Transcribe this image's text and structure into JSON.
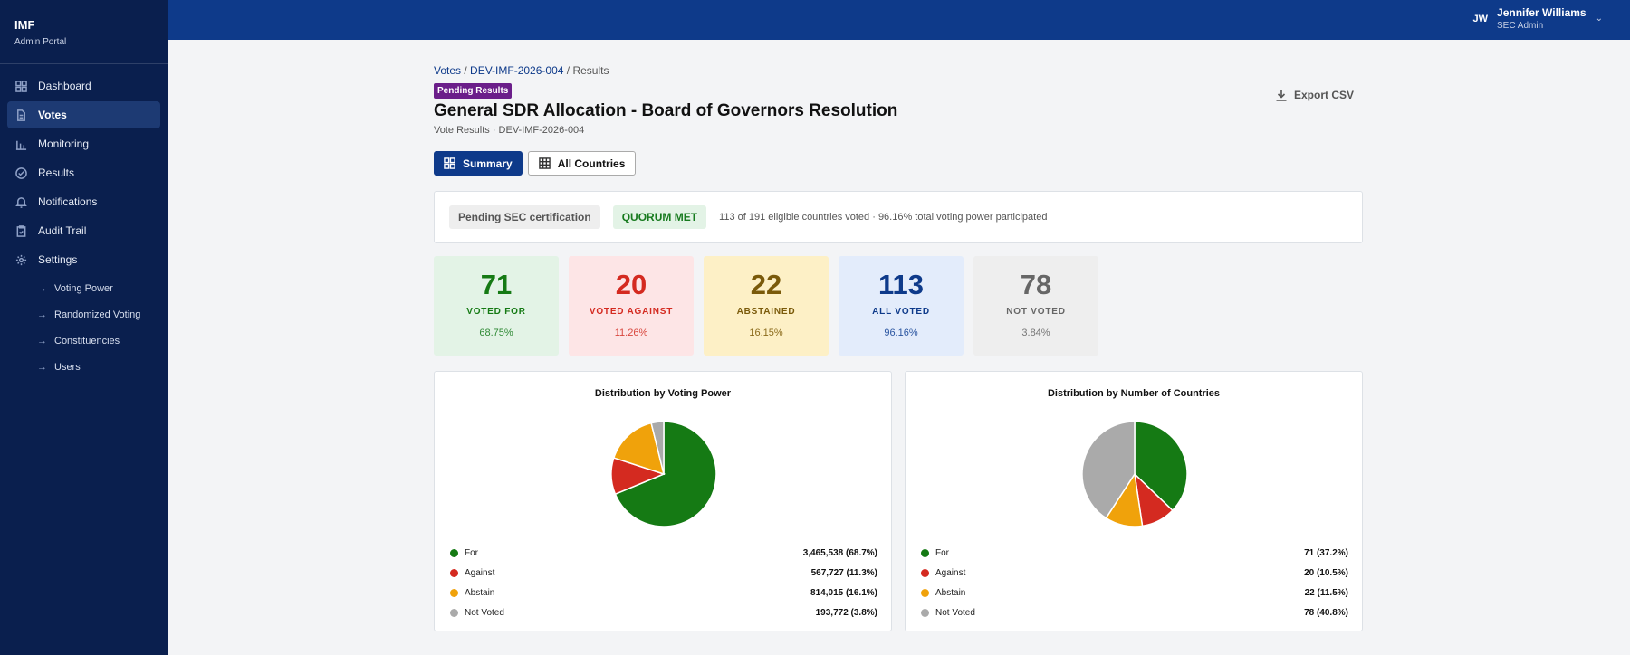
{
  "sidebar": {
    "org": "IMF",
    "subtitle": "Admin Portal",
    "items": [
      {
        "label": "Dashboard",
        "icon": "grid-icon"
      },
      {
        "label": "Votes",
        "icon": "document-icon"
      },
      {
        "label": "Monitoring",
        "icon": "bar-chart-icon"
      },
      {
        "label": "Results",
        "icon": "check-circle-icon"
      },
      {
        "label": "Notifications",
        "icon": "bell-icon"
      },
      {
        "label": "Audit Trail",
        "icon": "clipboard-icon"
      },
      {
        "label": "Settings",
        "icon": "gear-icon"
      }
    ],
    "settings_sub": [
      "Voting Power",
      "Randomized Voting",
      "Constituencies",
      "Users"
    ]
  },
  "user": {
    "initials": "JW",
    "name": "Jennifer Williams",
    "role": "SEC Admin"
  },
  "breadcrumb": {
    "votes": "Votes",
    "sep": " / ",
    "vote_id": "DEV-IMF-2026-004",
    "current": "Results"
  },
  "badge": "Pending Results",
  "title": "General SDR Allocation - Board of Governors Resolution",
  "subtitle": "Vote Results · DEV-IMF-2026-004",
  "export_label": "Export CSV",
  "tabs": {
    "summary": "Summary",
    "all_countries": "All Countries"
  },
  "status": {
    "certification": "Pending SEC certification",
    "quorum": "QUORUM MET",
    "text": "113 of 191 eligible countries voted  · 96.16% total voting power participated"
  },
  "stats": [
    {
      "value": "71",
      "label": "VOTED FOR",
      "pct": "68.75%"
    },
    {
      "value": "20",
      "label": "VOTED AGAINST",
      "pct": "11.26%"
    },
    {
      "value": "22",
      "label": "ABSTAINED",
      "pct": "16.15%"
    },
    {
      "value": "113",
      "label": "ALL VOTED",
      "pct": "96.16%"
    },
    {
      "value": "78",
      "label": "NOT VOTED",
      "pct": "3.84%"
    }
  ],
  "colors": {
    "for": "#157a14",
    "against": "#d42a20",
    "abstain": "#f0a20b",
    "not_voted": "#aaaaaa"
  },
  "chart_data": [
    {
      "type": "pie",
      "title": "Distribution by Voting Power",
      "categories": [
        "For",
        "Against",
        "Abstain",
        "Not Voted"
      ],
      "values": [
        3465538,
        567727,
        814015,
        193772
      ],
      "labels": [
        "3,465,538 (68.7%)",
        "567,727 (11.3%)",
        "814,015 (16.1%)",
        "193,772 (3.8%)"
      ]
    },
    {
      "type": "pie",
      "title": "Distribution by Number of Countries",
      "categories": [
        "For",
        "Against",
        "Abstain",
        "Not Voted"
      ],
      "values": [
        71,
        20,
        22,
        78
      ],
      "labels": [
        "71 (37.2%)",
        "20 (10.5%)",
        "22 (11.5%)",
        "78 (40.8%)"
      ]
    }
  ]
}
